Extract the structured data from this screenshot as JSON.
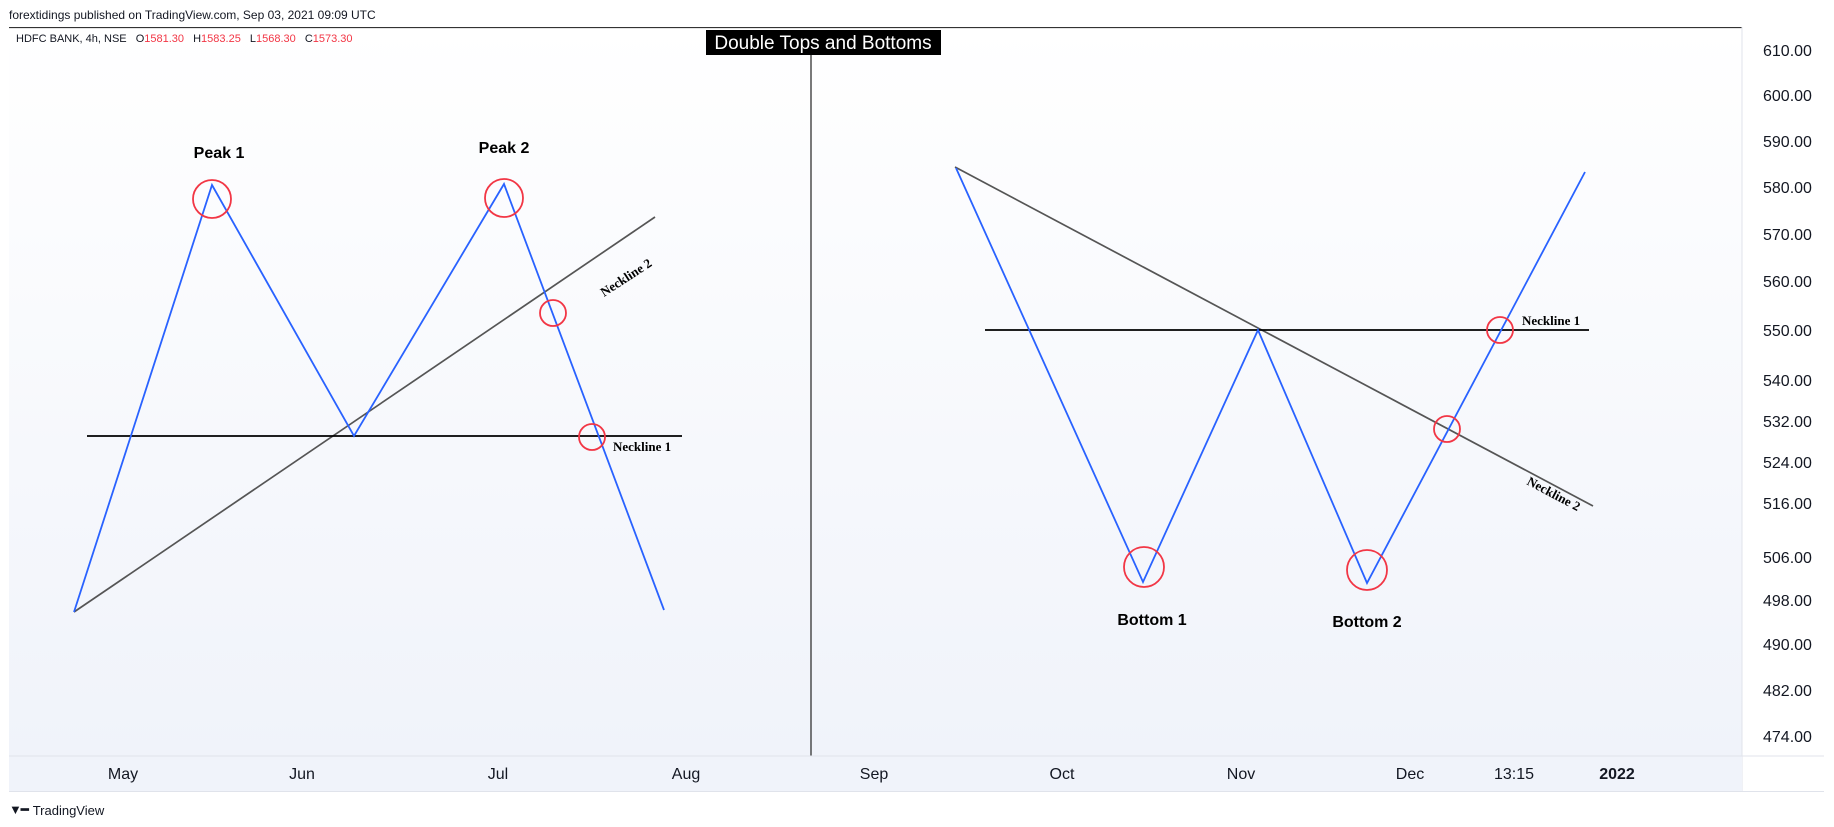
{
  "header": {
    "published_text": "forextidings published on TradingView.com, Sep 03, 2021 09:09 UTC"
  },
  "legend": {
    "symbol": "HDFC BANK, 4h, NSE",
    "open_label": "O",
    "open": "1581.30",
    "high_label": "H",
    "high": "1583.25",
    "low_label": "L",
    "low": "1568.30",
    "close_label": "C",
    "close": "1573.30"
  },
  "title": "Double Tops and Bottoms",
  "footer": {
    "brand": "TradingView"
  },
  "colors": {
    "pattern_line": "#2962ff",
    "neckline_1": "#000000",
    "neckline_2": "#555555",
    "marker": "#f23645",
    "background_top": "#ffffff",
    "background_bottom": "#f0f3fa",
    "legend_value": "#f23645"
  },
  "chart_data": {
    "type": "line",
    "price_axis": {
      "ticks": [
        "610.00",
        "600.00",
        "590.00",
        "580.00",
        "570.00",
        "560.00",
        "550.00",
        "540.00",
        "532.00",
        "524.00",
        "516.00",
        "506.00",
        "498.00",
        "490.00",
        "482.00",
        "474.00"
      ]
    },
    "time_axis": {
      "ticks": [
        "May",
        "Jun",
        "Jul",
        "Aug",
        "Sep",
        "Oct",
        "Nov",
        "Dec",
        "13:15",
        "2022"
      ]
    },
    "annotations": [
      {
        "text": "Peak 1"
      },
      {
        "text": "Peak 2"
      },
      {
        "text": "Bottom 1"
      },
      {
        "text": "Bottom 2"
      },
      {
        "text": "Neckline 1"
      },
      {
        "text": "Neckline 2"
      },
      {
        "text": "Neckline 1"
      },
      {
        "text": "Neckline 2"
      }
    ],
    "double_top": {
      "pattern": [
        {
          "time": "early May",
          "price": 498
        },
        {
          "time": "late May",
          "price": 580
        },
        {
          "time": "mid Jun",
          "price": 532
        },
        {
          "time": "early Jul",
          "price": 580
        },
        {
          "time": "late Jul",
          "price": 498
        }
      ],
      "neckline_1": [
        {
          "time": "early May",
          "price": 532
        },
        {
          "time": "late Jul",
          "price": 532
        }
      ],
      "neckline_2": [
        {
          "time": "early May",
          "price": 498
        },
        {
          "time": "late Jul",
          "price": 568
        }
      ]
    },
    "double_bottom": {
      "pattern": [
        {
          "time": "mid Sep",
          "price": 583
        },
        {
          "time": "mid Oct",
          "price": 501
        },
        {
          "time": "early Nov",
          "price": 550
        },
        {
          "time": "late Nov",
          "price": 500
        },
        {
          "time": "late Dec",
          "price": 582
        }
      ],
      "neckline_1": [
        {
          "time": "mid Sep",
          "price": 550
        },
        {
          "time": "late Dec",
          "price": 550
        }
      ],
      "neckline_2": [
        {
          "time": "mid Sep",
          "price": 583
        },
        {
          "time": "late Dec",
          "price": 514
        }
      ]
    }
  }
}
